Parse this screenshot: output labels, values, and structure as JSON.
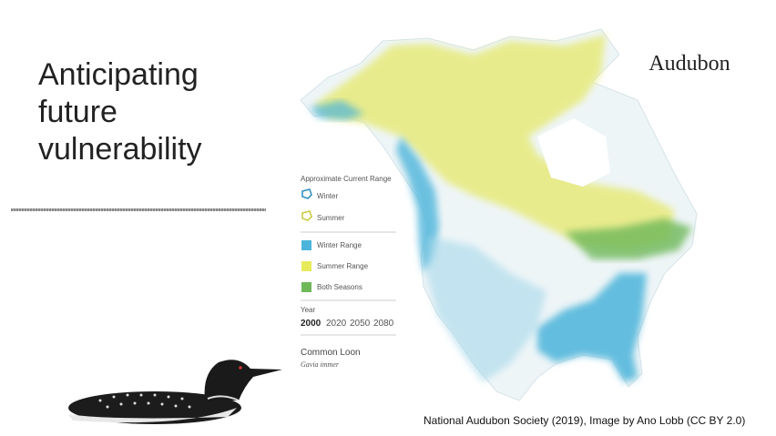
{
  "slide": {
    "title_lines": [
      "Anticipating",
      "future",
      "vulnerability"
    ],
    "logo": "Audubon",
    "legend": {
      "heading": "Approximate Current Range",
      "outline_items": [
        "Winter",
        "Summer"
      ],
      "fill_items": [
        "Winter Range",
        "Summer Range",
        "Both Seasons"
      ],
      "year_label": "Year",
      "years": [
        "2000",
        "2020",
        "2050",
        "2080"
      ],
      "species": "Common Loon",
      "scientific_name": "Gavia immer"
    },
    "credit": "National Audubon Society (2019), Image by Ano Lobb (CC BY 2.0)"
  }
}
